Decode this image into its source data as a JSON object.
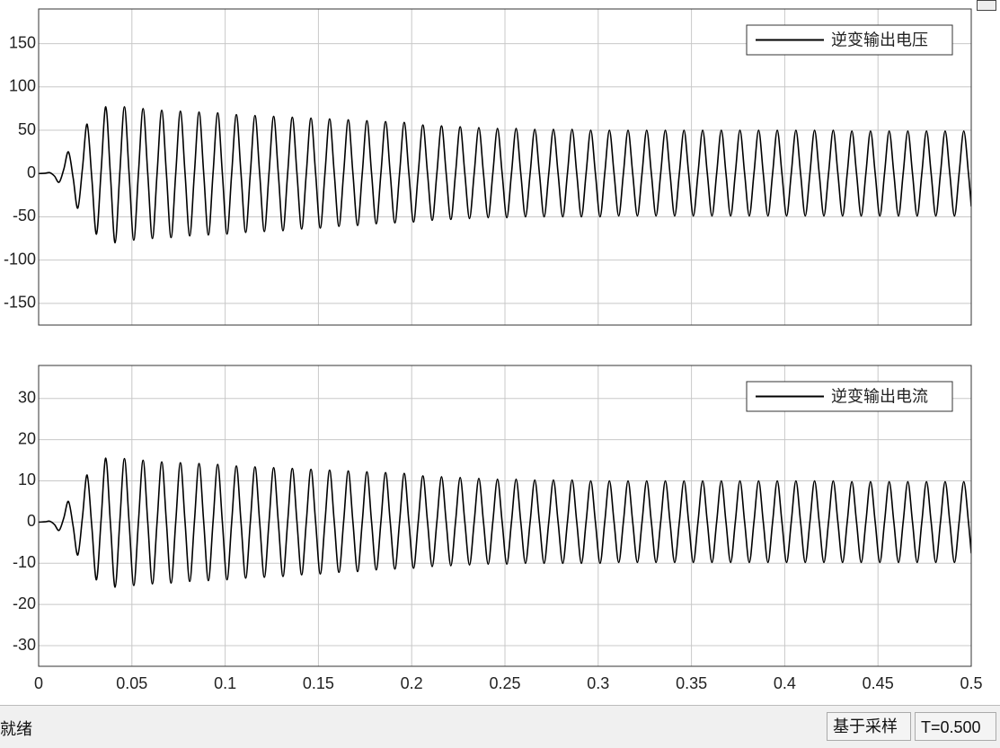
{
  "chart_data": [
    {
      "type": "line",
      "xlim": [
        0,
        0.5
      ],
      "ylim": [
        -175,
        190
      ],
      "grid": true,
      "legend": "upper right",
      "xticks": [
        0,
        0.05,
        0.1,
        0.15,
        0.2,
        0.25,
        0.3,
        0.35,
        0.4,
        0.45,
        0.5
      ],
      "yticks": [
        -150,
        -100,
        -50,
        0,
        50,
        100,
        150
      ],
      "x": [
        0,
        0.001,
        0.0035,
        0.006,
        0.0085,
        0.011,
        0.0135,
        0.016,
        0.0185,
        0.021,
        0.0235,
        0.026,
        0.0285,
        0.031,
        0.0335,
        0.036,
        0.0385,
        0.041,
        0.0435,
        0.046,
        0.0485,
        0.051,
        0.0535,
        0.056,
        0.0585,
        0.061,
        0.0635,
        0.066,
        0.0685,
        0.071,
        0.0735,
        0.076,
        0.0785,
        0.081,
        0.0835,
        0.086,
        0.0885,
        0.091,
        0.0935,
        0.096,
        0.0985,
        0.101,
        0.1035,
        0.106,
        0.1085,
        0.111,
        0.1135,
        0.116,
        0.1185,
        0.121,
        0.1235,
        0.126,
        0.1285,
        0.131,
        0.1335,
        0.136,
        0.1385,
        0.141,
        0.1435,
        0.146,
        0.1485,
        0.151,
        0.1535,
        0.156,
        0.1585,
        0.161,
        0.1635,
        0.166,
        0.1685,
        0.171,
        0.1735,
        0.176,
        0.1785,
        0.181,
        0.1835,
        0.186,
        0.1885,
        0.191,
        0.1935,
        0.196,
        0.1985,
        0.201,
        0.2035,
        0.206,
        0.2085,
        0.211,
        0.2135,
        0.216,
        0.2185,
        0.221,
        0.2235,
        0.226,
        0.2285,
        0.231,
        0.2335,
        0.236,
        0.2385,
        0.241,
        0.2435,
        0.246,
        0.2485,
        0.251,
        0.2535,
        0.256,
        0.2585,
        0.261,
        0.2635,
        0.266,
        0.2685,
        0.271,
        0.2735,
        0.276,
        0.2785,
        0.281,
        0.2835,
        0.286,
        0.2885,
        0.291,
        0.2935,
        0.296,
        0.2985,
        0.301,
        0.3035,
        0.306,
        0.3085,
        0.311,
        0.3135,
        0.316,
        0.3185,
        0.321,
        0.3235,
        0.326,
        0.3285,
        0.331,
        0.3335,
        0.336,
        0.3385,
        0.341,
        0.3435,
        0.346,
        0.3485,
        0.351,
        0.3535,
        0.356,
        0.3585,
        0.361,
        0.3635,
        0.366,
        0.3685,
        0.371,
        0.3735,
        0.376,
        0.3785,
        0.381,
        0.3835,
        0.386,
        0.3885,
        0.391,
        0.3935,
        0.396,
        0.3985,
        0.401,
        0.4035,
        0.406,
        0.4085,
        0.411,
        0.4135,
        0.416,
        0.4185,
        0.421,
        0.4235,
        0.426,
        0.4285,
        0.431,
        0.4335,
        0.436,
        0.4385,
        0.441,
        0.4435,
        0.446,
        0.4485,
        0.451,
        0.4535,
        0.456,
        0.4585,
        0.461,
        0.4635,
        0.466,
        0.4685,
        0.471,
        0.4735,
        0.476,
        0.4785,
        0.481,
        0.4835,
        0.486,
        0.4885,
        0.491,
        0.4935,
        0.496,
        0.4985,
        0.5
      ],
      "series": [
        {
          "name": "逆变输出电压",
          "color": "#000000",
          "values": [
            0,
            0,
            0.3,
            1,
            -3,
            -10,
            5,
            25,
            -5,
            -40,
            6,
            57,
            -5,
            -70,
            3,
            77,
            -2,
            -80,
            0,
            77,
            0,
            -77,
            0,
            75,
            0,
            -75,
            0,
            73,
            0,
            -74,
            0,
            72,
            0,
            -72,
            0,
            71,
            0,
            -71,
            0,
            70,
            0,
            -70,
            0,
            68,
            0,
            -68,
            0,
            67,
            0,
            -67,
            0,
            66,
            0,
            -66,
            0,
            65,
            0,
            -64,
            0,
            64,
            0,
            -63,
            0,
            63,
            0,
            -61,
            0,
            62,
            0,
            -60,
            0,
            61,
            0,
            -58,
            0,
            60,
            0,
            -57,
            0,
            59,
            0,
            -56,
            0,
            56,
            0,
            -54,
            0,
            55,
            0,
            -53,
            0,
            54,
            0,
            -52,
            0,
            53,
            0,
            -51,
            0,
            52,
            0,
            -51,
            0,
            52,
            0,
            -50,
            0,
            51,
            0,
            -50,
            0,
            51,
            0,
            -50,
            0,
            51,
            0,
            -50,
            0,
            50,
            0,
            -50,
            0,
            50,
            0,
            -49,
            0,
            50,
            0,
            -49,
            0,
            50,
            0,
            -49,
            0,
            50,
            0,
            -49,
            0,
            50,
            0,
            -49,
            0,
            50,
            0,
            -49,
            0,
            50,
            0,
            -49,
            0,
            50,
            0,
            -49,
            0,
            50,
            0,
            -49,
            0,
            50,
            0,
            -49,
            0,
            50,
            0,
            -49,
            0,
            50,
            0,
            -49,
            0,
            50,
            0,
            -49,
            0,
            49,
            0,
            -49,
            0,
            49,
            0,
            -49,
            0,
            49,
            0,
            -49,
            0,
            49,
            0,
            -49,
            0,
            49,
            0,
            -49,
            0,
            49,
            0,
            -49,
            0,
            49,
            0,
            -38
          ]
        }
      ]
    },
    {
      "type": "line",
      "xlim": [
        0,
        0.5
      ],
      "ylim": [
        -35,
        38
      ],
      "grid": true,
      "legend": "upper right",
      "xticks": [
        0,
        0.05,
        0.1,
        0.15,
        0.2,
        0.25,
        0.3,
        0.35,
        0.4,
        0.45,
        0.5
      ],
      "yticks": [
        -30,
        -20,
        -10,
        0,
        10,
        20,
        30
      ],
      "x": [
        0,
        0.001,
        0.0035,
        0.006,
        0.0085,
        0.011,
        0.0135,
        0.016,
        0.0185,
        0.021,
        0.0235,
        0.026,
        0.0285,
        0.031,
        0.0335,
        0.036,
        0.0385,
        0.041,
        0.0435,
        0.046,
        0.0485,
        0.051,
        0.0535,
        0.056,
        0.0585,
        0.061,
        0.0635,
        0.066,
        0.0685,
        0.071,
        0.0735,
        0.076,
        0.0785,
        0.081,
        0.0835,
        0.086,
        0.0885,
        0.091,
        0.0935,
        0.096,
        0.0985,
        0.101,
        0.1035,
        0.106,
        0.1085,
        0.111,
        0.1135,
        0.116,
        0.1185,
        0.121,
        0.1235,
        0.126,
        0.1285,
        0.131,
        0.1335,
        0.136,
        0.1385,
        0.141,
        0.1435,
        0.146,
        0.1485,
        0.151,
        0.1535,
        0.156,
        0.1585,
        0.161,
        0.1635,
        0.166,
        0.1685,
        0.171,
        0.1735,
        0.176,
        0.1785,
        0.181,
        0.1835,
        0.186,
        0.1885,
        0.191,
        0.1935,
        0.196,
        0.1985,
        0.201,
        0.2035,
        0.206,
        0.2085,
        0.211,
        0.2135,
        0.216,
        0.2185,
        0.221,
        0.2235,
        0.226,
        0.2285,
        0.231,
        0.2335,
        0.236,
        0.2385,
        0.241,
        0.2435,
        0.246,
        0.2485,
        0.251,
        0.2535,
        0.256,
        0.2585,
        0.261,
        0.2635,
        0.266,
        0.2685,
        0.271,
        0.2735,
        0.276,
        0.2785,
        0.281,
        0.2835,
        0.286,
        0.2885,
        0.291,
        0.2935,
        0.296,
        0.2985,
        0.301,
        0.3035,
        0.306,
        0.3085,
        0.311,
        0.3135,
        0.316,
        0.3185,
        0.321,
        0.3235,
        0.326,
        0.3285,
        0.331,
        0.3335,
        0.336,
        0.3385,
        0.341,
        0.3435,
        0.346,
        0.3485,
        0.351,
        0.3535,
        0.356,
        0.3585,
        0.361,
        0.3635,
        0.366,
        0.3685,
        0.371,
        0.3735,
        0.376,
        0.3785,
        0.381,
        0.3835,
        0.386,
        0.3885,
        0.391,
        0.3935,
        0.396,
        0.3985,
        0.401,
        0.4035,
        0.406,
        0.4085,
        0.411,
        0.4135,
        0.416,
        0.4185,
        0.421,
        0.4235,
        0.426,
        0.4285,
        0.431,
        0.4335,
        0.436,
        0.4385,
        0.441,
        0.4435,
        0.446,
        0.4485,
        0.451,
        0.4535,
        0.456,
        0.4585,
        0.461,
        0.4635,
        0.466,
        0.4685,
        0.471,
        0.4735,
        0.476,
        0.4785,
        0.481,
        0.4835,
        0.486,
        0.4885,
        0.491,
        0.4935,
        0.496,
        0.4985,
        0.5
      ],
      "series": [
        {
          "name": "逆变输出电流",
          "color": "#000000",
          "values": [
            0,
            0,
            0.06,
            0.2,
            -0.6,
            -2,
            1,
            5,
            -1,
            -8,
            1.2,
            11.4,
            -1,
            -14,
            0.6,
            15.5,
            -0.4,
            -15.8,
            0,
            15.4,
            0,
            -15.4,
            0,
            15,
            0,
            -15,
            0,
            14.6,
            0,
            -14.8,
            0,
            14.4,
            0,
            -14.4,
            0,
            14.2,
            0,
            -14.2,
            0,
            14,
            0,
            -14,
            0,
            13.6,
            0,
            -13.6,
            0,
            13.4,
            0,
            -13.4,
            0,
            13.2,
            0,
            -13.2,
            0,
            13,
            0,
            -12.8,
            0,
            12.8,
            0,
            -12.6,
            0,
            12.6,
            0,
            -12.2,
            0,
            12.4,
            0,
            -12,
            0,
            12.2,
            0,
            -11.6,
            0,
            12,
            0,
            -11.4,
            0,
            11.8,
            0,
            -11.2,
            0,
            11.2,
            0,
            -10.8,
            0,
            11,
            0,
            -10.6,
            0,
            10.8,
            0,
            -10.4,
            0,
            10.6,
            0,
            -10.2,
            0,
            10.4,
            0,
            -10.2,
            0,
            10.4,
            0,
            -10,
            0,
            10.2,
            0,
            -10,
            0,
            10.2,
            0,
            -10,
            0,
            10.2,
            0,
            -10,
            0,
            10,
            0,
            -10,
            0,
            10,
            0,
            -9.8,
            0,
            10,
            0,
            -9.8,
            0,
            10,
            0,
            -9.8,
            0,
            10,
            0,
            -9.8,
            0,
            10,
            0,
            -9.8,
            0,
            10,
            0,
            -9.8,
            0,
            10,
            0,
            -9.8,
            0,
            10,
            0,
            -9.8,
            0,
            10,
            0,
            -9.8,
            0,
            10,
            0,
            -9.8,
            0,
            10,
            0,
            -9.8,
            0,
            10,
            0,
            -9.8,
            0,
            10,
            0,
            -9.8,
            0,
            9.8,
            0,
            -9.8,
            0,
            9.8,
            0,
            -9.8,
            0,
            9.8,
            0,
            -9.8,
            0,
            9.8,
            0,
            -9.8,
            0,
            9.8,
            0,
            -9.8,
            0,
            9.8,
            0,
            -9.8,
            0,
            9.8,
            0,
            -7.6
          ]
        }
      ]
    }
  ],
  "status_bar": {
    "status": "就绪",
    "mode": "基于采样",
    "time": "T=0.500"
  }
}
